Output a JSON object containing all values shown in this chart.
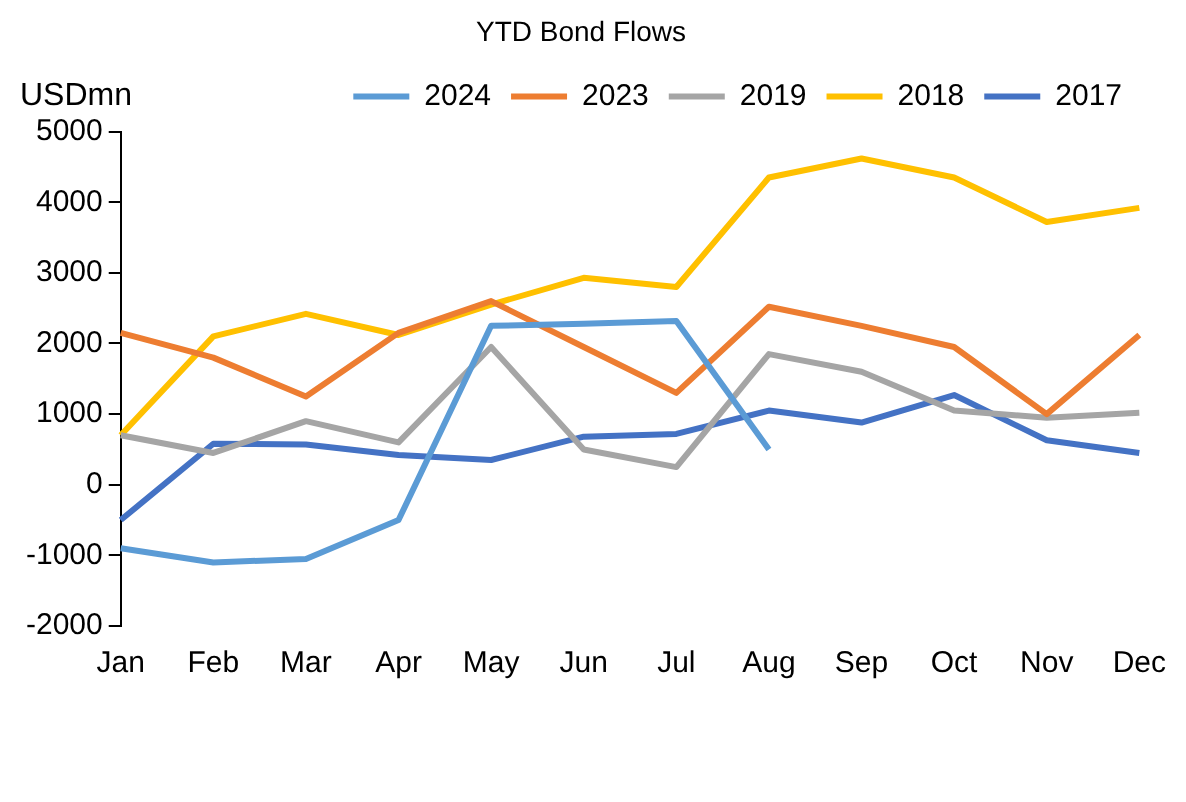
{
  "chart_data": {
    "type": "line",
    "title": "YTD Bond Flows",
    "ylabel": "USDmn",
    "categories": [
      "Jan",
      "Feb",
      "Mar",
      "Apr",
      "May",
      "Jun",
      "Jul",
      "Aug",
      "Sep",
      "Oct",
      "Nov",
      "Dec"
    ],
    "series": [
      {
        "name": "2024",
        "color": "#5b9bd5",
        "values": [
          -900,
          -1100,
          -1050,
          -500,
          2250,
          2280,
          2320,
          500,
          null,
          null,
          null,
          null
        ]
      },
      {
        "name": "2023",
        "color": "#ed7d31",
        "values": [
          2150,
          1800,
          1250,
          2150,
          2600,
          1950,
          1300,
          2520,
          2250,
          1950,
          1000,
          2120
        ]
      },
      {
        "name": "2019",
        "color": "#a5a5a5",
        "values": [
          700,
          450,
          900,
          600,
          1950,
          500,
          250,
          1850,
          1600,
          1050,
          950,
          1020
        ]
      },
      {
        "name": "2018",
        "color": "#ffc000",
        "values": [
          700,
          2100,
          2420,
          2120,
          2550,
          2930,
          2800,
          4350,
          4620,
          4350,
          3720,
          3920
        ]
      },
      {
        "name": "2017",
        "color": "#4472c4",
        "values": [
          -500,
          580,
          570,
          420,
          350,
          680,
          720,
          1050,
          880,
          1270,
          630,
          450
        ]
      }
    ],
    "ylim": [
      -2000,
      5000
    ],
    "yticks": [
      -2000,
      -1000,
      0,
      1000,
      2000,
      3000,
      4000,
      5000
    ],
    "grid": false,
    "legend": "top",
    "marker": "none",
    "line_style": "solid"
  }
}
